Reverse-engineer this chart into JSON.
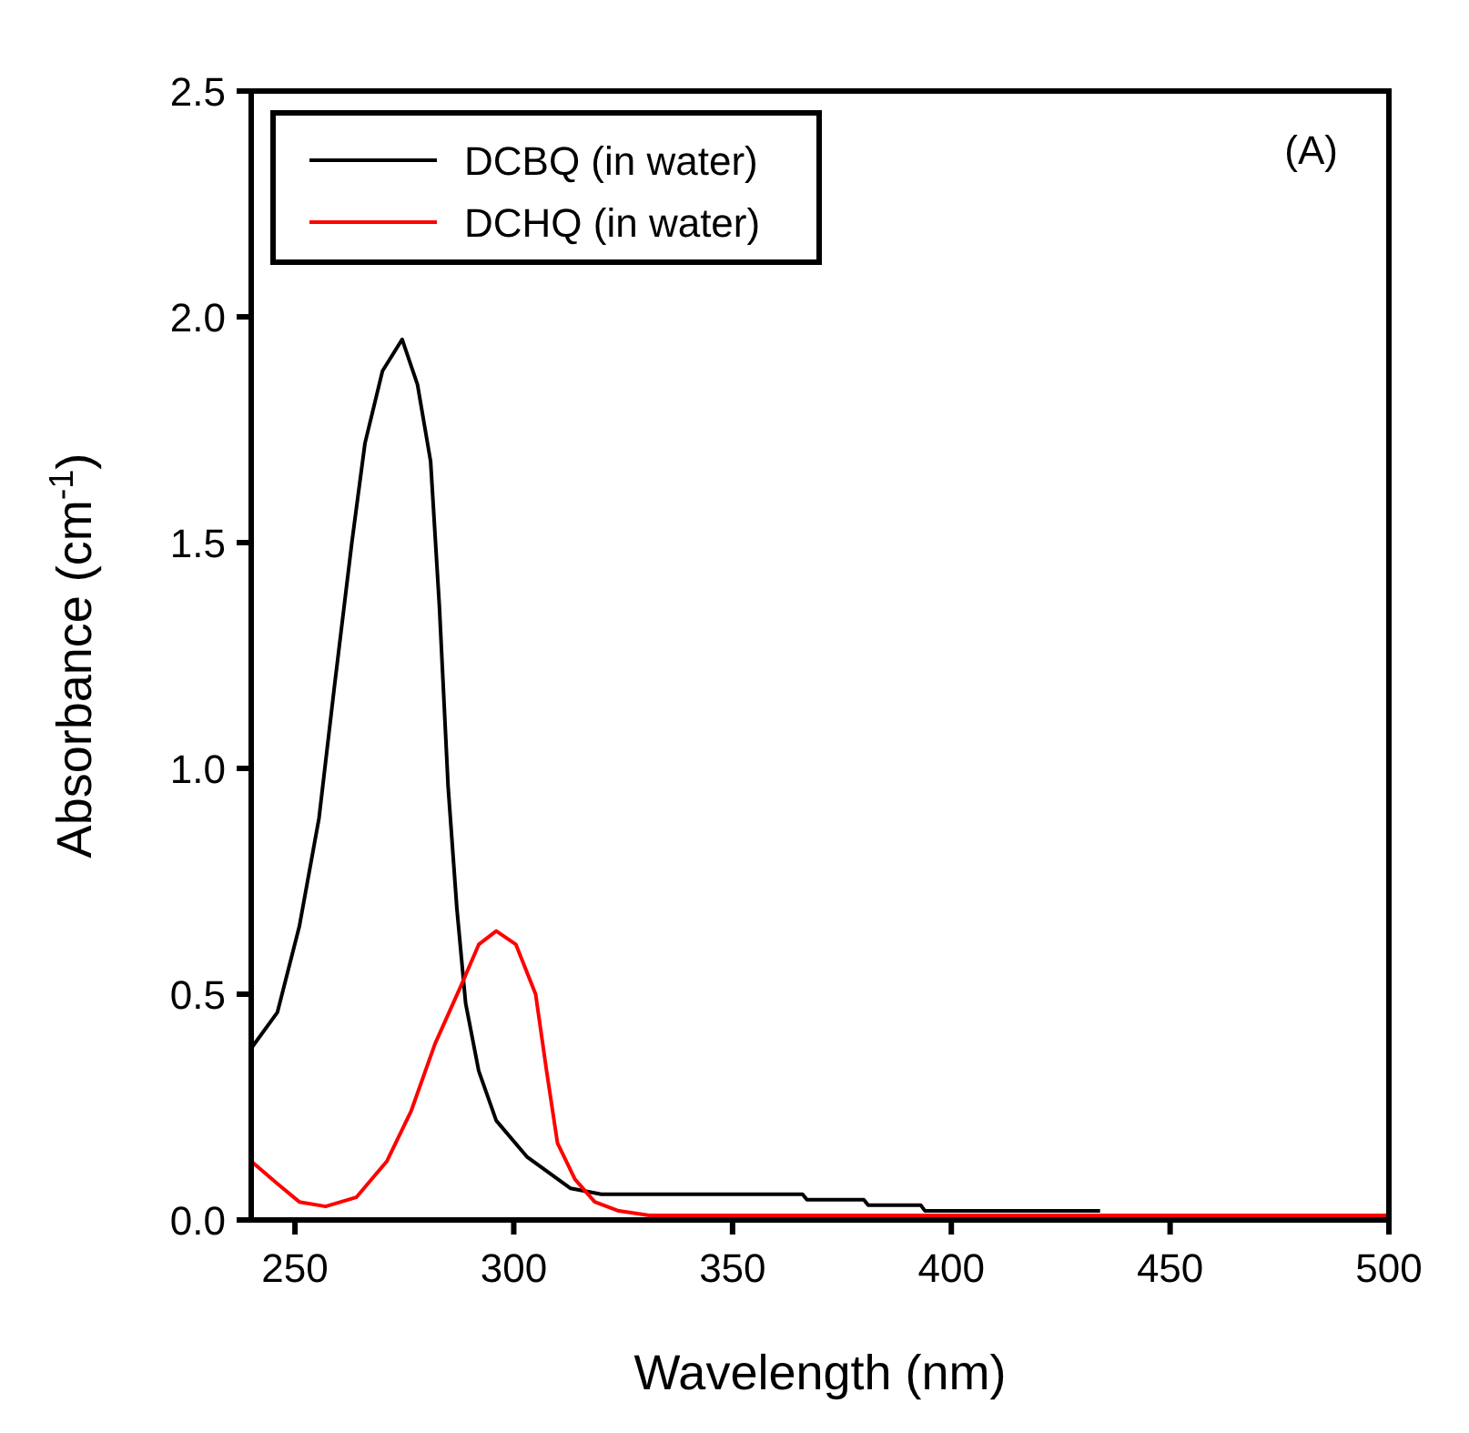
{
  "chart_data": {
    "type": "line",
    "xlabel": "Wavelength (nm)",
    "ylabel": "Absorbance (cm$^{-1}$)",
    "annotations": [
      "(A)"
    ],
    "xlim": [
      240,
      500
    ],
    "xticks": [
      250,
      300,
      350,
      400,
      450,
      500
    ],
    "ylim": [
      0,
      2.5
    ],
    "yticks": [
      {
        "value": 0,
        "label": "0.0"
      },
      {
        "value": 0.5,
        "label": "0.5"
      },
      {
        "value": 1,
        "label": "1.0"
      },
      {
        "value": 1.5,
        "label": "1.5"
      },
      {
        "value": 2,
        "label": "2.0"
      },
      {
        "value": 2.5,
        "label": "2.5"
      }
    ],
    "legend": "top left",
    "grid": false,
    "marker": "none",
    "line_style": "solid",
    "series": [
      {
        "name": "DCBQ (in water)",
        "color": "#000000",
        "x": [
          240,
          246,
          251,
          255.5,
          259,
          263,
          266,
          270,
          274.5,
          278,
          281,
          283,
          285,
          287,
          289,
          292,
          296,
          303,
          313,
          320,
          366,
          367,
          380,
          381,
          393,
          394,
          434
        ],
        "values": [
          0.38,
          0.46,
          0.65,
          0.89,
          1.18,
          1.5,
          1.72,
          1.88,
          1.95,
          1.85,
          1.68,
          1.36,
          0.96,
          0.69,
          0.48,
          0.33,
          0.22,
          0.14,
          0.07,
          0.057,
          0.057,
          0.045,
          0.045,
          0.033,
          0.033,
          0.02,
          0.02
        ]
      },
      {
        "name": "DCHQ (in water)",
        "color": "#ff0000",
        "x": [
          240,
          246,
          251,
          257,
          264,
          271,
          276.5,
          282,
          288,
          292,
          296,
          300.5,
          305,
          307.5,
          310,
          314,
          318.5,
          324,
          331,
          500
        ],
        "values": [
          0.13,
          0.08,
          0.04,
          0.03,
          0.05,
          0.13,
          0.24,
          0.39,
          0.52,
          0.61,
          0.64,
          0.61,
          0.5,
          0.33,
          0.17,
          0.09,
          0.04,
          0.02,
          0.01,
          0.01
        ]
      }
    ]
  }
}
